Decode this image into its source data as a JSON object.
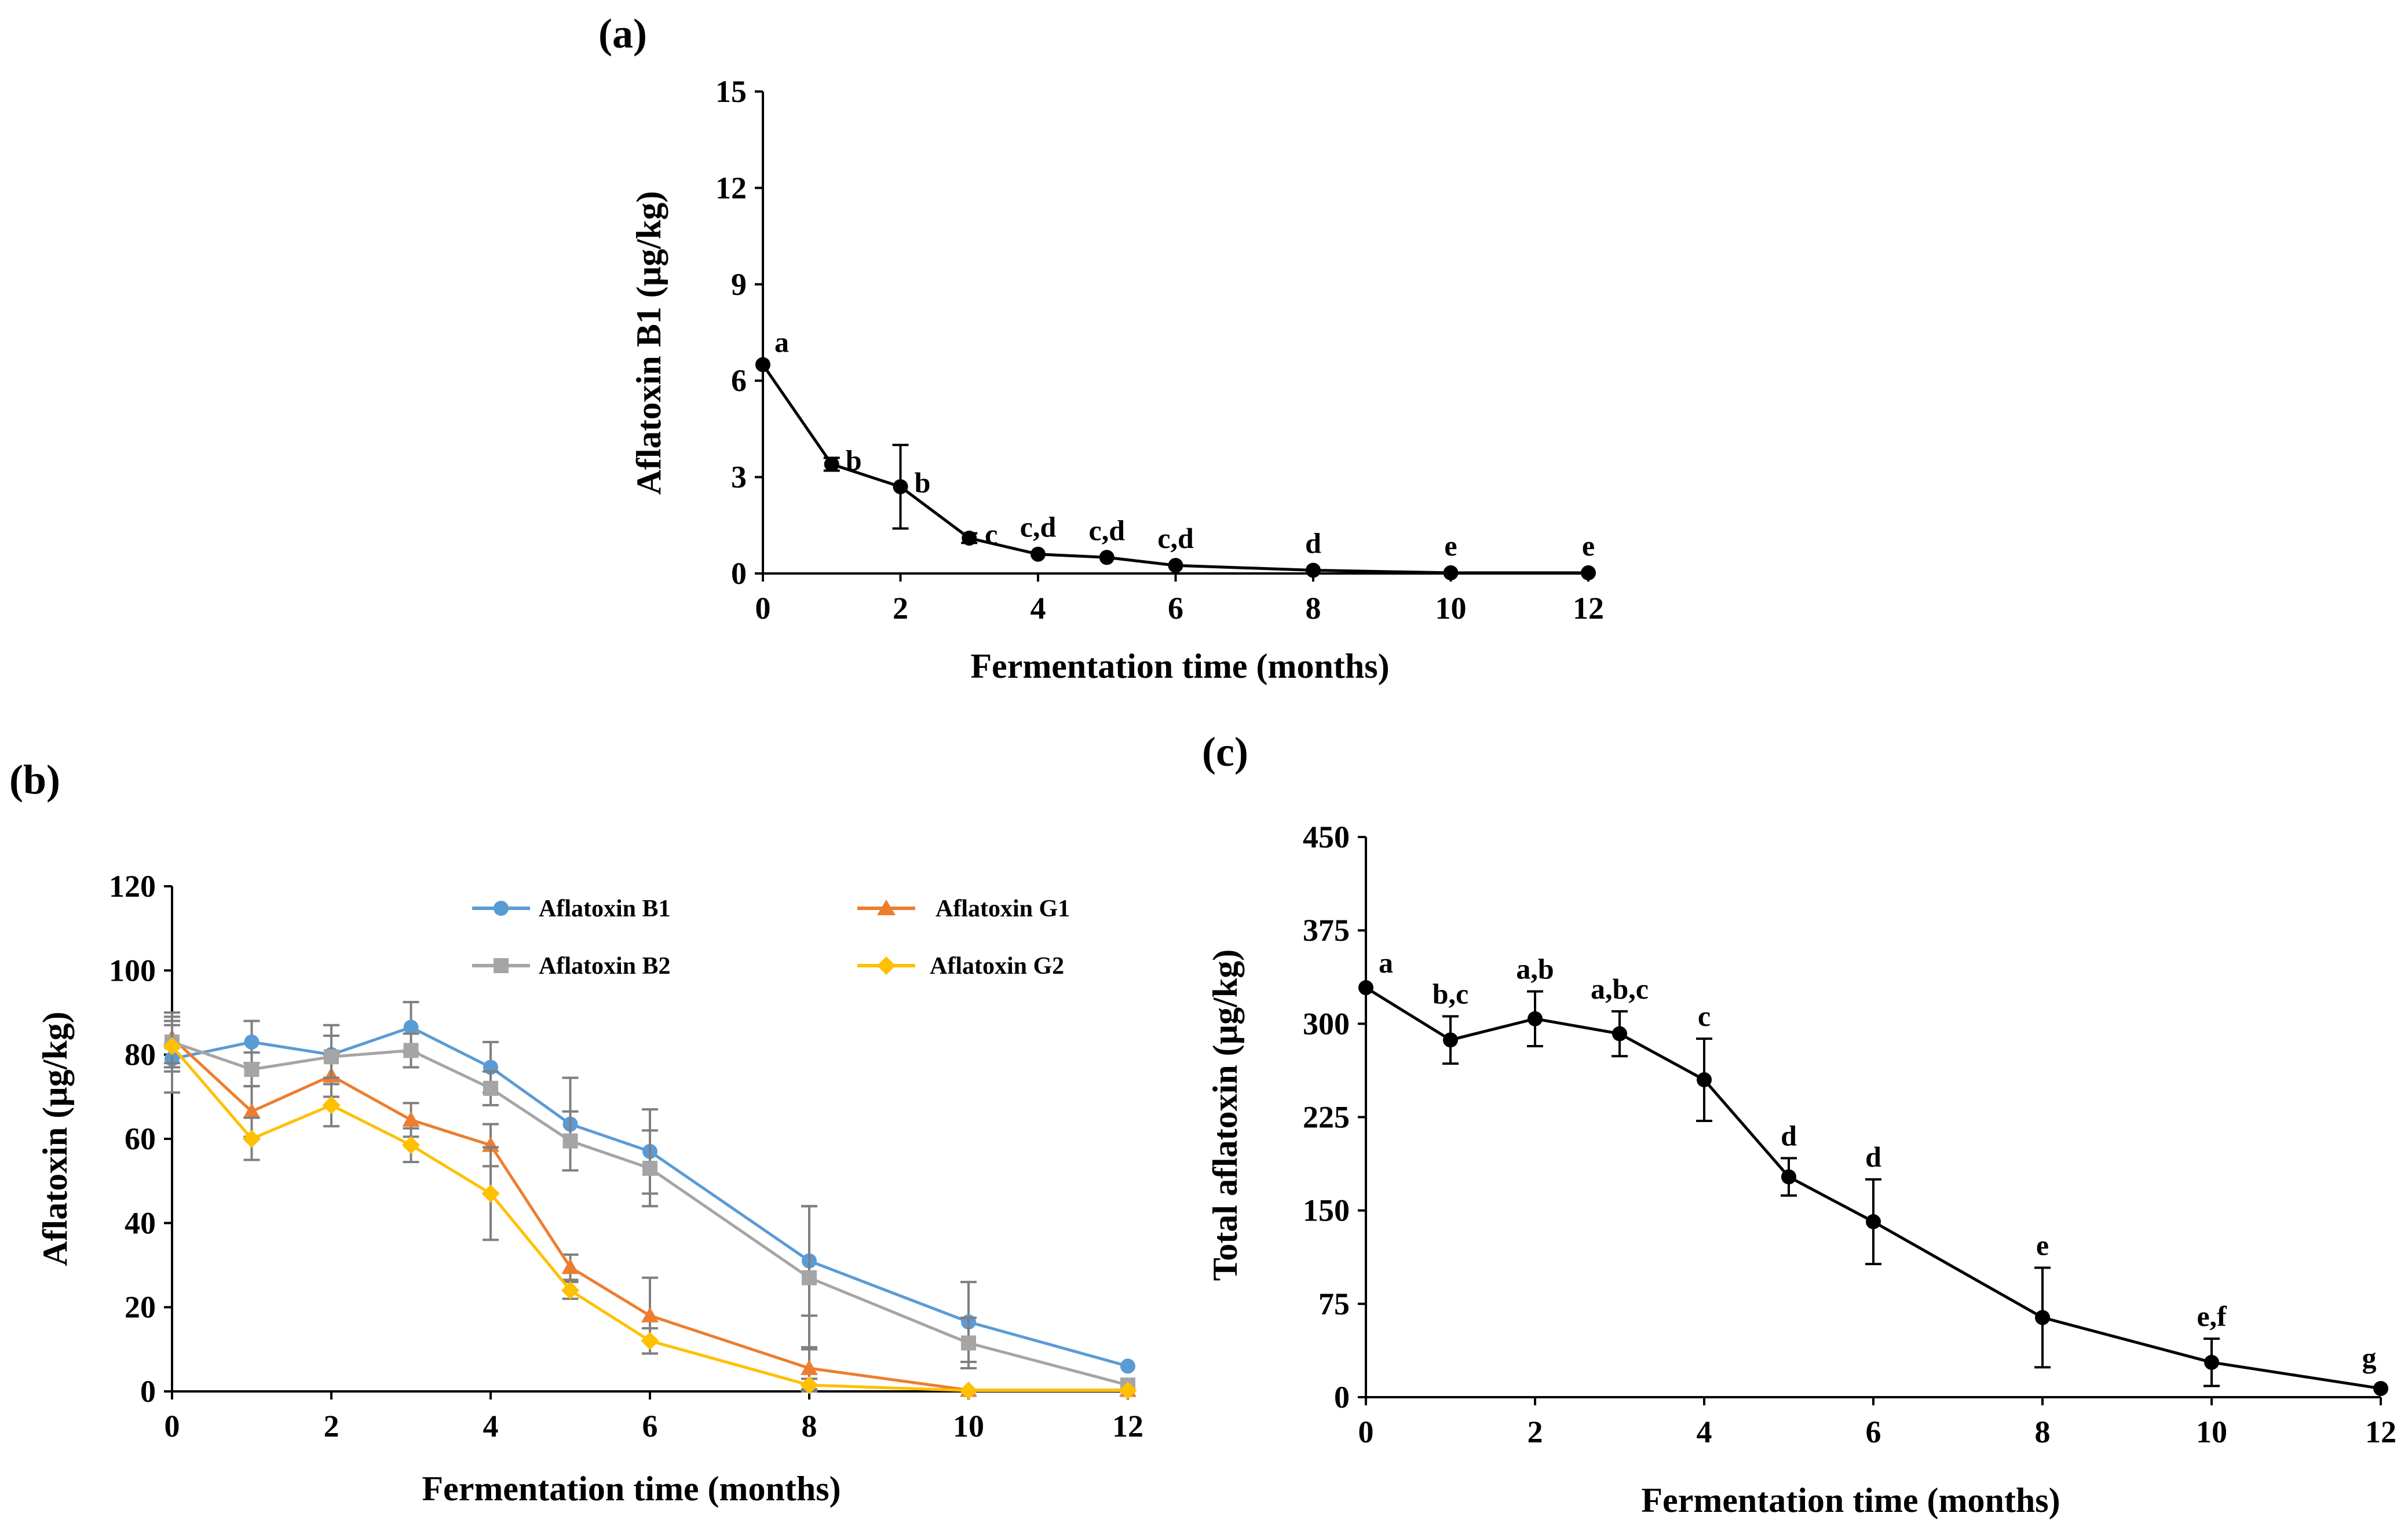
{
  "chart_data": [
    {
      "id": "a",
      "type": "line",
      "panel_label": "(a)",
      "xlabel": "Fermentation time (months)",
      "ylabel": "Aflatoxin B1 (µg/kg)",
      "xlim": [
        0,
        12
      ],
      "ylim": [
        0,
        15
      ],
      "xticks": [
        0,
        2,
        4,
        6,
        8,
        10,
        12
      ],
      "yticks": [
        0,
        3,
        6,
        9,
        12,
        15
      ],
      "grid": false,
      "series": [
        {
          "name": "Aflatoxin B1",
          "color": "#000000",
          "marker": "circle",
          "x": [
            0,
            1,
            2,
            3,
            4,
            5,
            6,
            8,
            10,
            12
          ],
          "values": [
            6.5,
            3.4,
            2.7,
            1.1,
            0.6,
            0.5,
            0.25,
            0.1,
            0.02,
            0.02
          ],
          "errors": [
            0,
            0.2,
            1.3,
            0.15,
            0,
            0,
            0,
            0,
            0,
            0
          ],
          "labels": [
            "a",
            "b",
            "b",
            "c",
            "c,d",
            "c,d",
            "c,d",
            "d",
            "e",
            "e"
          ]
        }
      ]
    },
    {
      "id": "b",
      "type": "line",
      "panel_label": "(b)",
      "xlabel": "Fermentation time (months)",
      "ylabel": "Aflatoxin (µg/kg)",
      "xlim": [
        0,
        12
      ],
      "ylim": [
        0,
        120
      ],
      "xticks": [
        0,
        2,
        4,
        6,
        8,
        10,
        12
      ],
      "yticks": [
        0,
        20,
        40,
        60,
        80,
        100,
        120
      ],
      "grid": false,
      "legend": "top",
      "series": [
        {
          "name": "Aflatoxin B1",
          "color": "#5B9BD5",
          "marker": "circle",
          "x": [
            0,
            1,
            2,
            3,
            4,
            5,
            6,
            8,
            10,
            12
          ],
          "values": [
            79,
            83,
            80,
            86.5,
            77,
            63.5,
            57,
            31,
            16.5,
            6
          ],
          "errors": [
            8,
            5,
            7,
            6,
            6,
            11,
            10,
            13,
            9.5,
            0
          ]
        },
        {
          "name": "Aflatoxin G1",
          "color": "#ED7D31",
          "marker": "triangle",
          "x": [
            0,
            1,
            2,
            3,
            4,
            5,
            6,
            8,
            10,
            12
          ],
          "values": [
            84,
            66.5,
            75,
            64.5,
            58.5,
            29.5,
            18,
            5.5,
            0.3,
            0.3
          ],
          "errors": [
            6,
            6,
            5,
            4,
            5,
            3,
            9,
            5,
            0,
            0
          ]
        },
        {
          "name": "Aflatoxin B2",
          "color": "#A5A5A5",
          "marker": "square",
          "x": [
            0,
            1,
            2,
            3,
            4,
            5,
            6,
            8,
            10,
            12
          ],
          "values": [
            83,
            76.5,
            79.5,
            81,
            72,
            59.5,
            53,
            27,
            11.5,
            1.5
          ],
          "errors": [
            6,
            4,
            5,
            4,
            4,
            7,
            9,
            17,
            6,
            0
          ]
        },
        {
          "name": "Aflatoxin G2",
          "color": "#FFC000",
          "marker": "diamond",
          "x": [
            0,
            1,
            2,
            3,
            4,
            5,
            6,
            8,
            10,
            12
          ],
          "values": [
            82,
            60,
            68,
            58.5,
            47,
            24,
            12,
            1.5,
            0.2,
            0.2
          ],
          "errors": [
            6,
            5,
            5,
            4,
            11,
            2,
            3,
            1.5,
            0,
            0
          ]
        }
      ]
    },
    {
      "id": "c",
      "type": "line",
      "panel_label": "(c)",
      "xlabel": "Fermentation time (months)",
      "ylabel": "Total aflatoxin (µg/kg)",
      "xlim": [
        0,
        12
      ],
      "ylim": [
        0,
        450
      ],
      "xticks": [
        0,
        2,
        4,
        6,
        8,
        10,
        12
      ],
      "yticks": [
        0,
        75,
        150,
        225,
        300,
        375,
        450
      ],
      "grid": false,
      "series": [
        {
          "name": "Total aflatoxin",
          "color": "#000000",
          "marker": "circle",
          "x": [
            0,
            1,
            2,
            3,
            4,
            5,
            6,
            8,
            10,
            12
          ],
          "values": [
            329,
            287,
            304,
            292,
            255,
            177,
            141,
            64,
            28,
            7
          ],
          "errors": [
            0,
            19,
            22,
            18,
            33,
            15,
            34,
            40,
            19,
            0
          ],
          "labels": [
            "a",
            "b,c",
            "a,b",
            "a,b,c",
            "c",
            "d",
            "d",
            "e",
            "e,f",
            "g"
          ]
        }
      ]
    }
  ]
}
